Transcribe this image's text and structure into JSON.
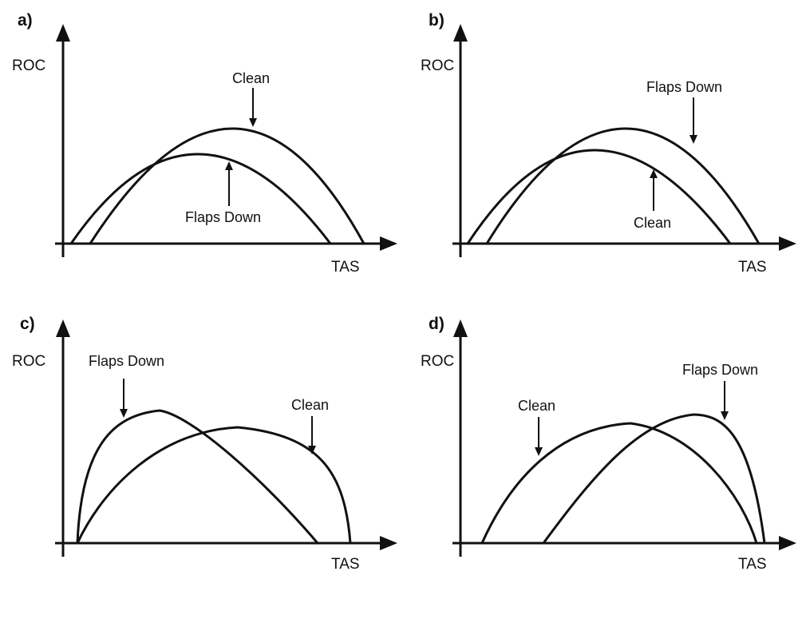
{
  "axis_labels": {
    "y": "ROC",
    "x": "TAS"
  },
  "panels": [
    {
      "letter": "a)",
      "labels": {
        "top": "Clean",
        "bottom": "Flaps Down"
      }
    },
    {
      "letter": "b)",
      "labels": {
        "top": "Flaps Down",
        "bottom": "Clean"
      }
    },
    {
      "letter": "c)",
      "labels": {
        "left": "Flaps Down",
        "right": "Clean"
      }
    },
    {
      "letter": "d)",
      "labels": {
        "left": "Clean",
        "right": "Flaps Down"
      }
    }
  ],
  "colors": {
    "ink": "#111111",
    "background": "#ffffff"
  }
}
